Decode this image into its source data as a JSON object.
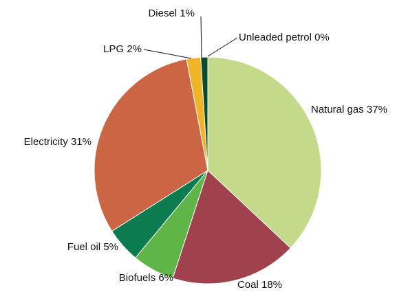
{
  "chart_data": {
    "type": "pie",
    "categories": [
      "Natural gas",
      "Coal",
      "Biofuels",
      "Fuel oil",
      "Electricity",
      "LPG",
      "Diesel",
      "Unleaded petrol"
    ],
    "values": [
      37,
      18,
      6,
      5,
      31,
      2,
      1,
      0
    ],
    "value_labels": [
      "37%",
      "18%",
      "6%",
      "5%",
      "31%",
      "2%",
      "1%",
      "0%"
    ],
    "colors": [
      "#c5d98a",
      "#a0414e",
      "#5fb548",
      "#0a7c50",
      "#cc6543",
      "#f0b429",
      "#0c4a2c",
      "#dcdcdc"
    ]
  }
}
